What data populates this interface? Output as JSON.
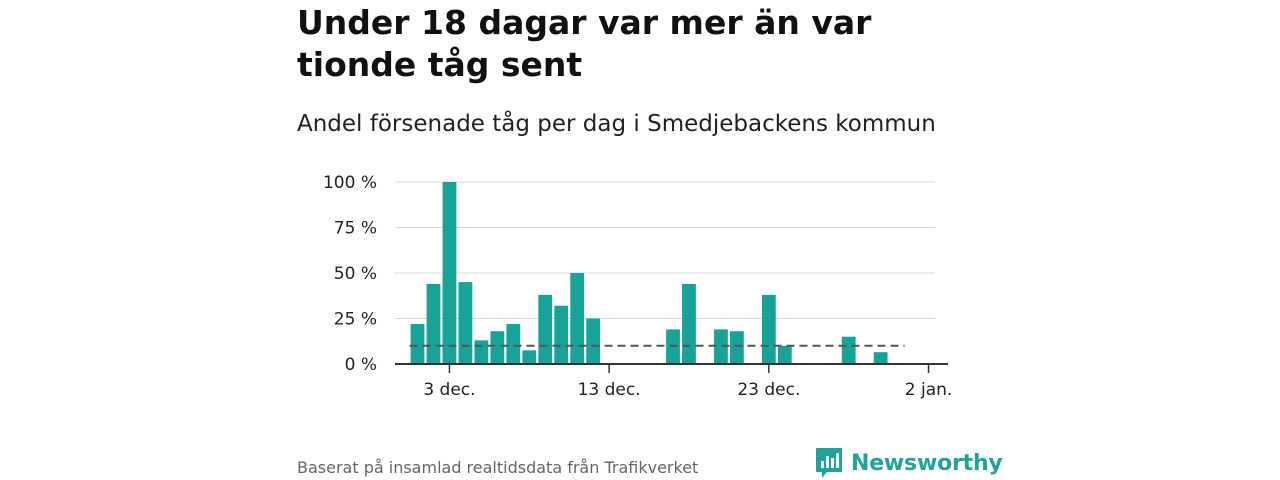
{
  "title": "Under 18 dagar var mer än var tionde tåg sent",
  "subtitle": "Andel försenade tåg per dag i Smedjebackens kommun",
  "footer": {
    "source": "Baserat på insamlad realtidsdata från Trafikverket",
    "brand": "Newsworthy"
  },
  "colors": {
    "bar": "#17a398",
    "reference_line": "#555555",
    "grid": "#d9d9d9",
    "brand": "#22a39a"
  },
  "chart_data": {
    "type": "bar",
    "x_start": "2023-12-01",
    "dates": [
      "2023-12-01",
      "2023-12-02",
      "2023-12-03",
      "2023-12-04",
      "2023-12-05",
      "2023-12-06",
      "2023-12-07",
      "2023-12-08",
      "2023-12-09",
      "2023-12-10",
      "2023-12-11",
      "2023-12-12",
      "2023-12-13",
      "2023-12-14",
      "2023-12-15",
      "2023-12-16",
      "2023-12-17",
      "2023-12-18",
      "2023-12-19",
      "2023-12-20",
      "2023-12-21",
      "2023-12-22",
      "2023-12-23",
      "2023-12-24",
      "2023-12-25",
      "2023-12-26",
      "2023-12-27",
      "2023-12-28",
      "2023-12-29",
      "2023-12-30",
      "2023-12-31"
    ],
    "values": [
      22,
      44,
      100,
      45,
      13,
      18,
      22,
      7.5,
      38,
      32,
      50,
      25,
      null,
      null,
      null,
      null,
      19,
      44,
      null,
      19,
      18,
      null,
      38,
      10,
      null,
      null,
      null,
      15,
      null,
      6.5,
      null
    ],
    "reference_line": {
      "value": 10,
      "style": "dashed"
    },
    "xticks": [
      {
        "date": "2023-12-03",
        "label": "3 dec."
      },
      {
        "date": "2023-12-13",
        "label": "13 dec."
      },
      {
        "date": "2023-12-23",
        "label": "23 dec."
      },
      {
        "date": "2024-01-02",
        "label": "2 jan."
      }
    ],
    "yticks": [
      {
        "value": 0,
        "label": "0 %"
      },
      {
        "value": 25,
        "label": "25 %"
      },
      {
        "value": 50,
        "label": "50 %"
      },
      {
        "value": 75,
        "label": "75 %"
      },
      {
        "value": 100,
        "label": "100 %"
      }
    ],
    "ylim": [
      0,
      100
    ],
    "grid": true,
    "xlabel": "",
    "ylabel": ""
  }
}
